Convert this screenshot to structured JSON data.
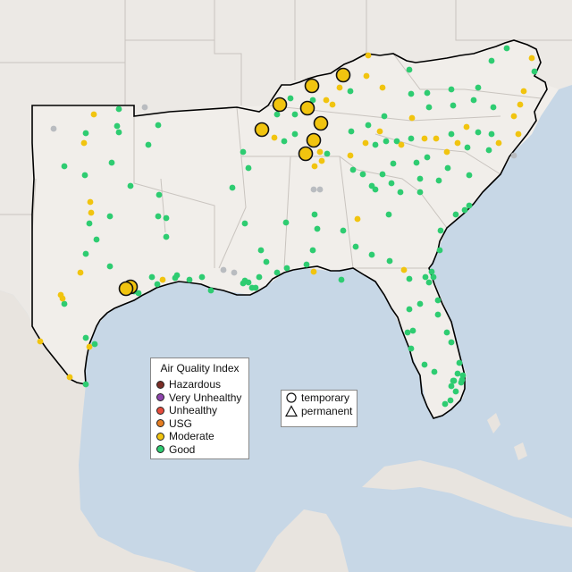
{
  "colors": {
    "ocean": "#c7d7e6",
    "land": "#efece8",
    "outside": "#e7e3df",
    "good": "#2ecc71",
    "moderate": "#f1c40f",
    "usg": "#e67e22",
    "unhealthy": "#e74c3c",
    "very_unhealthy": "#8e44ad",
    "hazardous": "#7b2d26",
    "no_data": "#b9bcc0"
  },
  "legend": {
    "title": "Air Quality Index",
    "items": [
      {
        "label": "Hazardous",
        "color": "#7b2d26"
      },
      {
        "label": "Very Unhealthy",
        "color": "#8e44ad"
      },
      {
        "label": "Unhealthy",
        "color": "#e74c3c"
      },
      {
        "label": "USG",
        "color": "#e67e22"
      },
      {
        "label": "Moderate",
        "color": "#f1c40f"
      },
      {
        "label": "Good",
        "color": "#2ecc71"
      }
    ]
  },
  "shape_legend": {
    "items": [
      {
        "label": "temporary",
        "shape": "circle-icon"
      },
      {
        "label": "permanent",
        "shape": "triangle-icon"
      }
    ]
  }
}
